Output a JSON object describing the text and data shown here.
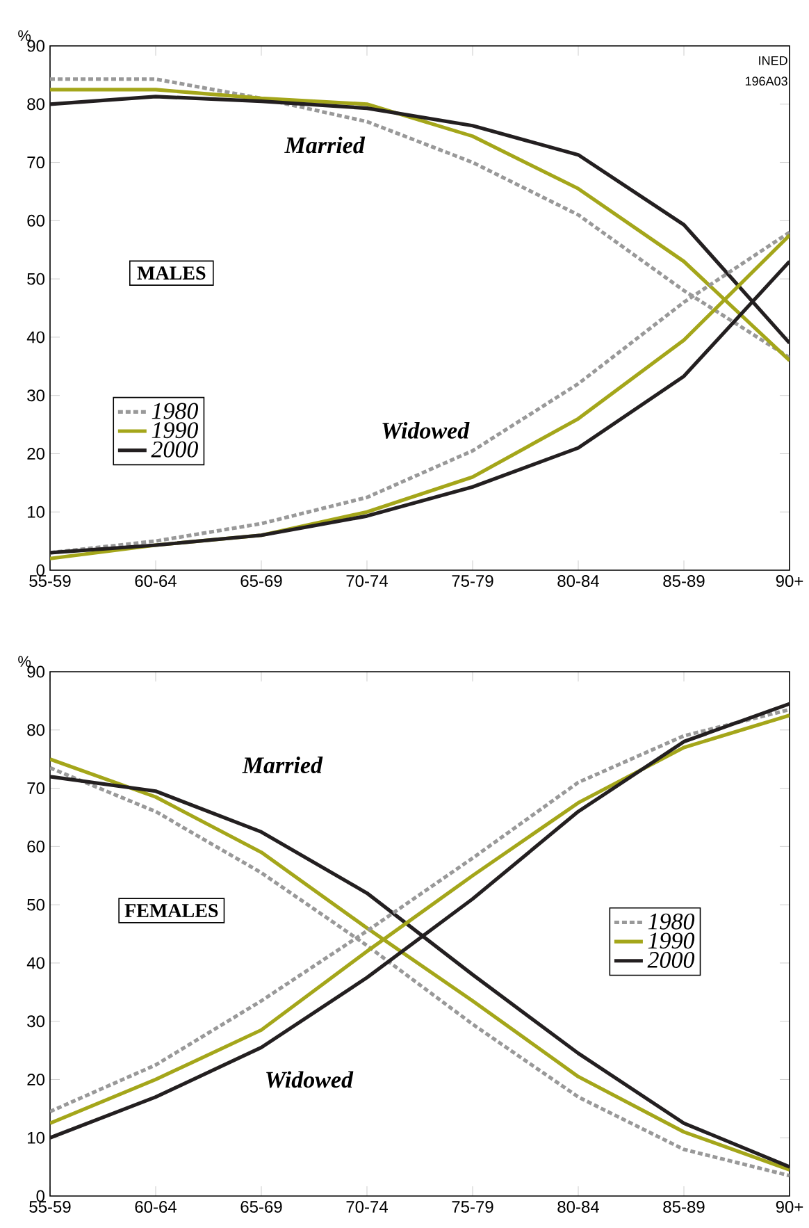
{
  "chart_data": [
    {
      "type": "line",
      "ylabel": "%",
      "categories": [
        "55-59",
        "60-64",
        "65-69",
        "70-74",
        "75-79",
        "80-84",
        "85-89",
        "90+"
      ],
      "ylim": [
        0,
        90
      ],
      "yticks": [
        0,
        10,
        20,
        30,
        40,
        50,
        60,
        70,
        80,
        90
      ],
      "legend": "left",
      "grid": false,
      "series": [
        {
          "name": "1980",
          "color": "#999999",
          "line_style": "dotted",
          "values": [
            84.3,
            84.3,
            81,
            77,
            70,
            61,
            48,
            36.5
          ]
        },
        {
          "name": "1990",
          "color": "#a4a61a",
          "line_style": "solid",
          "values": [
            82.5,
            82.5,
            81,
            80,
            74.5,
            65.5,
            53,
            36
          ]
        },
        {
          "name": "2000",
          "color": "#231f20",
          "line_style": "solid",
          "values": [
            80,
            81.3,
            80.5,
            79.3,
            76.3,
            71.3,
            59.3,
            39
          ]
        },
        {
          "color": "#999999",
          "line_style": "dotted",
          "values": [
            3,
            5,
            8,
            12.5,
            20.5,
            32,
            46,
            58
          ]
        },
        {
          "color": "#a4a61a",
          "line_style": "solid",
          "values": [
            2,
            4.3,
            6,
            10,
            16,
            26,
            39.5,
            57.5
          ]
        },
        {
          "color": "#231f20",
          "line_style": "solid",
          "values": [
            3,
            4.3,
            6,
            9.3,
            14.3,
            21,
            33.3,
            53
          ]
        }
      ],
      "annotations": [
        "Married",
        "Widowed",
        "MALES",
        "INED",
        "196A03"
      ]
    },
    {
      "type": "line",
      "ylabel": "%",
      "categories": [
        "55-59",
        "60-64",
        "65-69",
        "70-74",
        "75-79",
        "80-84",
        "85-89",
        "90+"
      ],
      "ylim": [
        0,
        90
      ],
      "yticks": [
        0,
        10,
        20,
        30,
        40,
        50,
        60,
        70,
        80,
        90
      ],
      "legend": "right",
      "grid": false,
      "series": [
        {
          "name": "1980",
          "color": "#999999",
          "line_style": "dotted",
          "values": [
            73.5,
            66,
            55.5,
            43,
            29.5,
            17,
            8,
            3.5
          ]
        },
        {
          "name": "1990",
          "color": "#a4a61a",
          "line_style": "solid",
          "values": [
            75,
            68.5,
            59,
            46,
            33.5,
            20.5,
            11,
            4.5
          ]
        },
        {
          "name": "2000",
          "color": "#231f20",
          "line_style": "solid",
          "values": [
            72,
            69.5,
            62.5,
            52,
            38,
            24.5,
            12.5,
            5
          ]
        },
        {
          "color": "#999999",
          "line_style": "dotted",
          "values": [
            14.5,
            22.5,
            33.5,
            45.5,
            58,
            71,
            79,
            83.5
          ]
        },
        {
          "color": "#a4a61a",
          "line_style": "solid",
          "values": [
            12.5,
            20,
            28.5,
            42,
            55,
            67.5,
            77,
            82.5
          ]
        },
        {
          "color": "#231f20",
          "line_style": "solid",
          "values": [
            10,
            17,
            25.5,
            37.5,
            51,
            66,
            78,
            84.5
          ]
        }
      ],
      "annotations": [
        "Married",
        "Widowed",
        "FEMALES"
      ]
    }
  ]
}
